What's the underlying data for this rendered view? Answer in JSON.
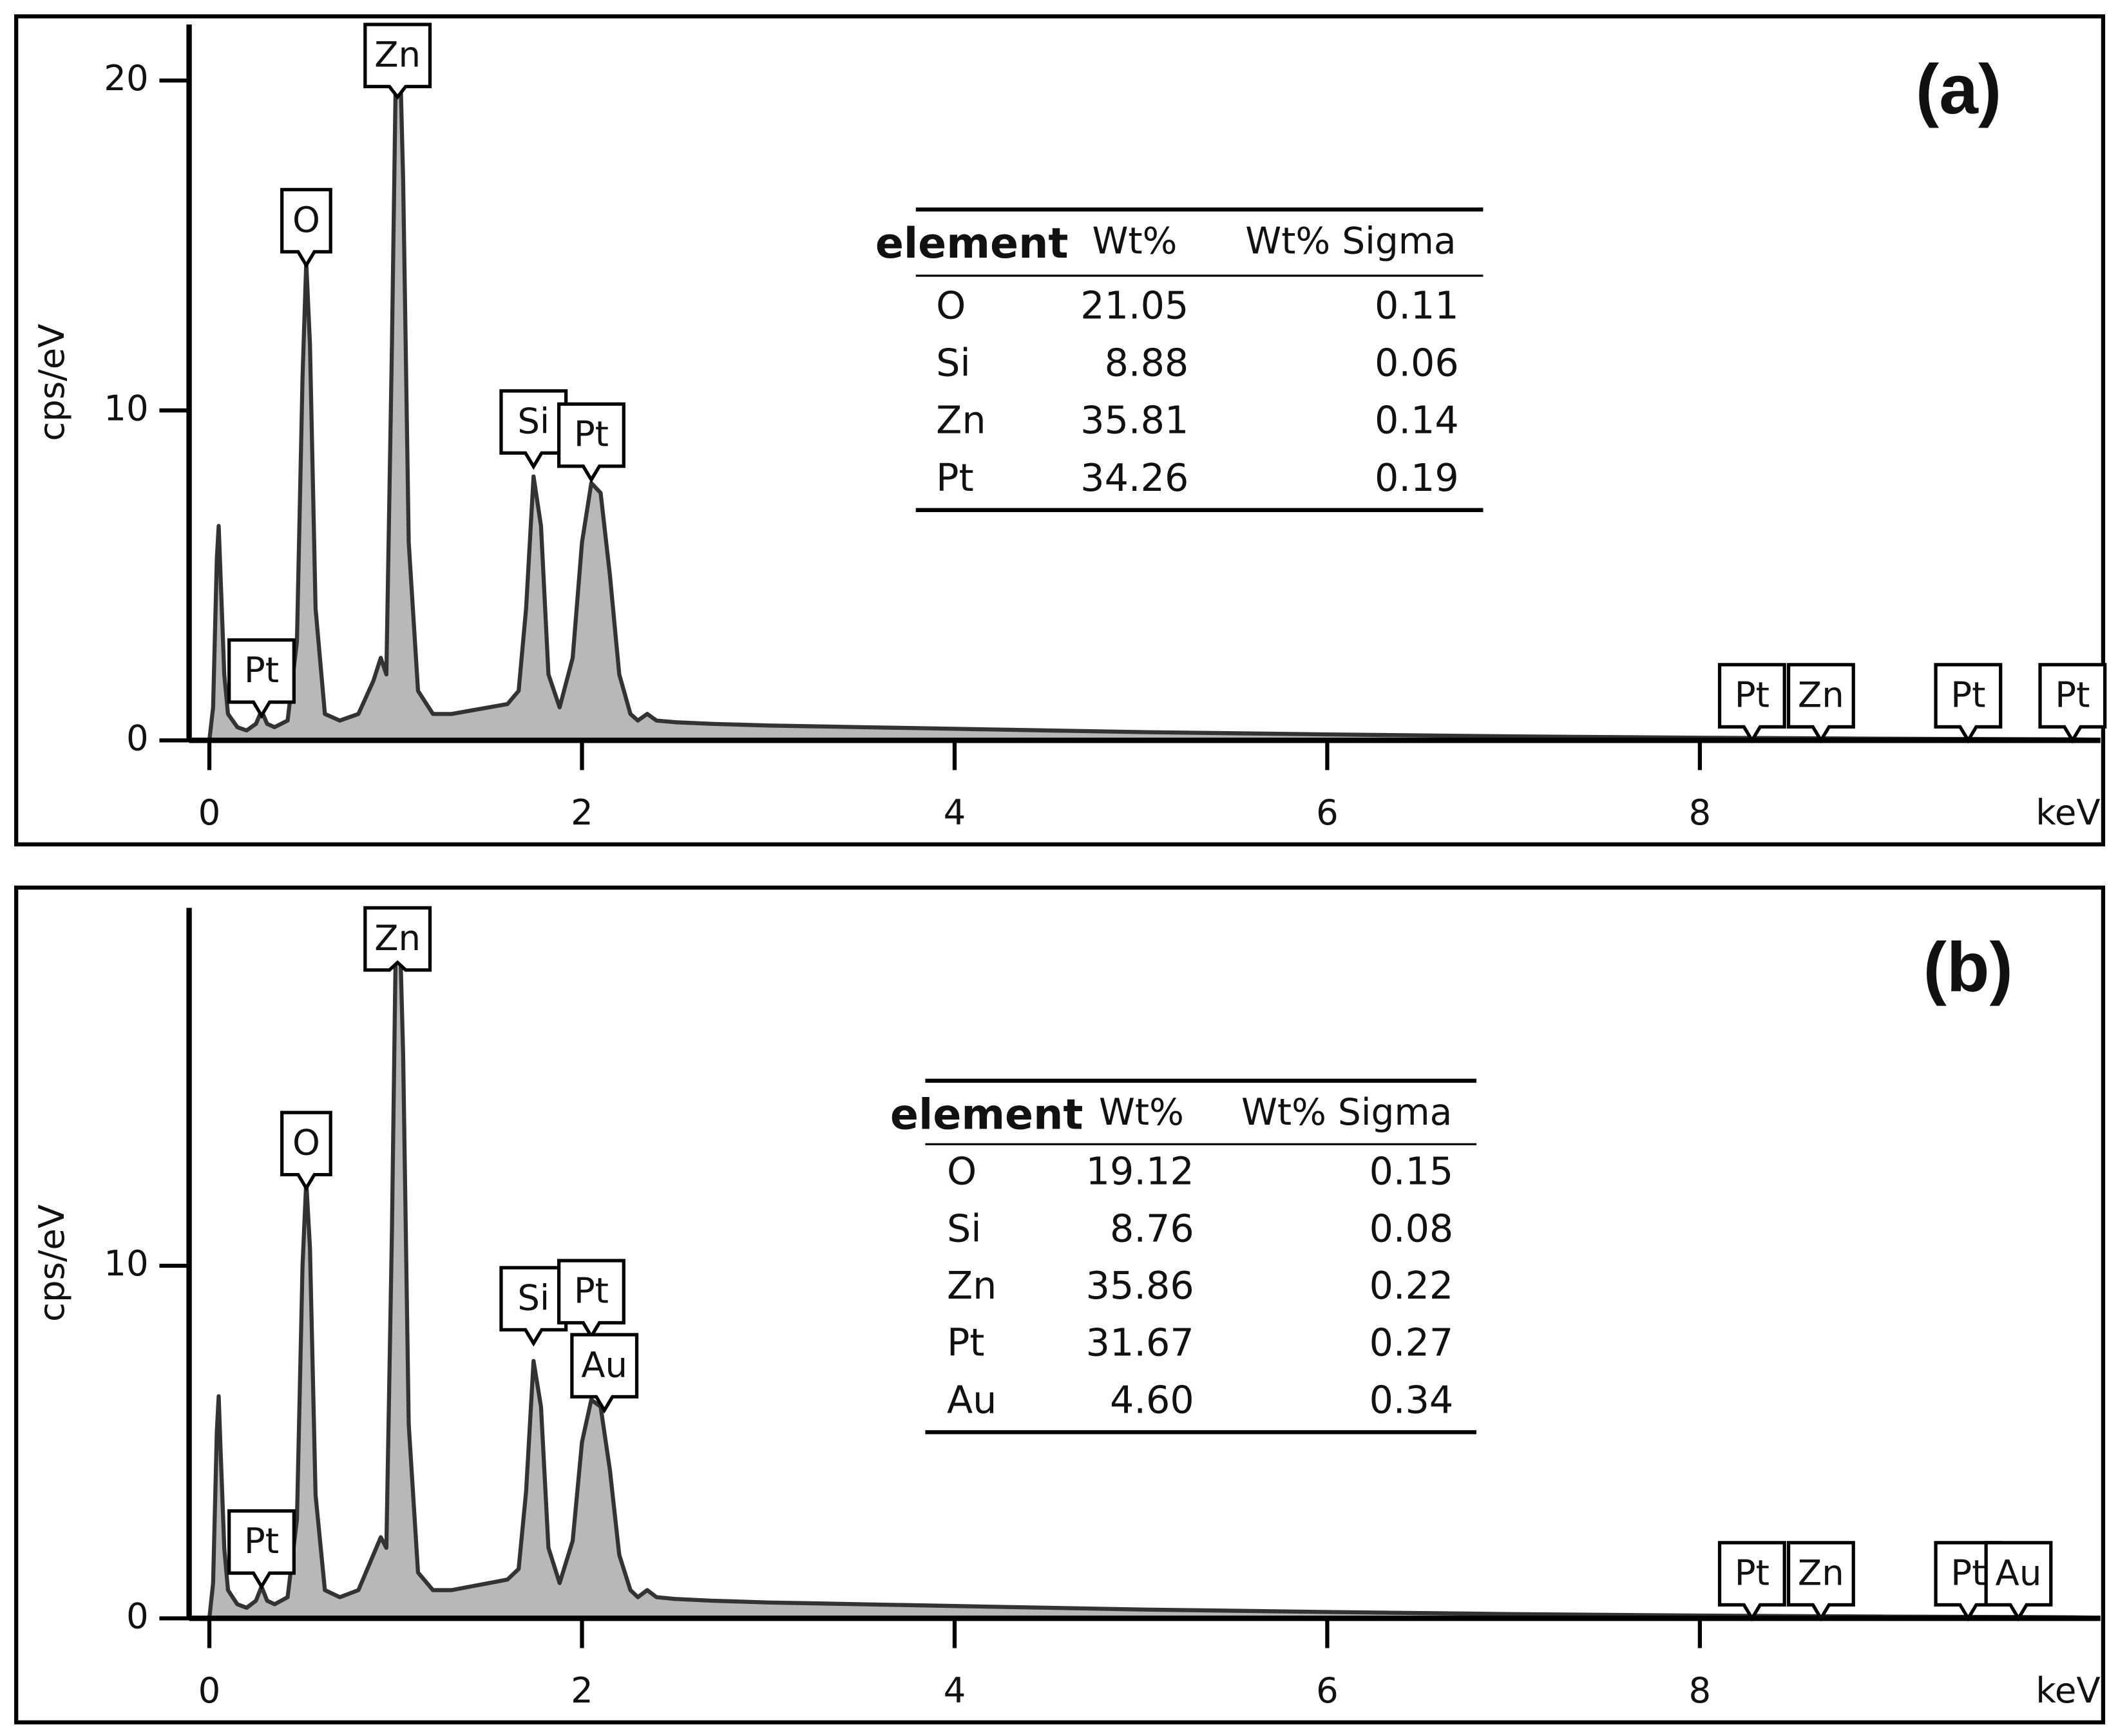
{
  "chart_data": [
    {
      "type": "area",
      "title": "(a)",
      "x_label": "keV",
      "y_label": "cps/eV",
      "color": "#b8b8b8",
      "line_color": "#333333",
      "x": [
        0,
        0.02,
        0.04,
        0.05,
        0.06,
        0.08,
        0.1,
        0.15,
        0.2,
        0.25,
        0.28,
        0.31,
        0.35,
        0.42,
        0.47,
        0.5,
        0.52,
        0.54,
        0.57,
        0.62,
        0.7,
        0.8,
        0.88,
        0.92,
        0.95,
        0.98,
        1.0,
        1.02,
        1.04,
        1.07,
        1.12,
        1.2,
        1.3,
        1.4,
        1.5,
        1.6,
        1.66,
        1.7,
        1.74,
        1.78,
        1.82,
        1.88,
        1.95,
        2.0,
        2.05,
        2.1,
        2.15,
        2.2,
        2.26,
        2.3,
        2.35,
        2.4,
        2.5,
        2.7,
        3,
        3.5,
        4,
        5,
        6,
        7,
        8,
        9,
        10,
        10.1
      ],
      "values": [
        0,
        1,
        5.5,
        6.5,
        5,
        2,
        0.8,
        0.4,
        0.3,
        0.5,
        0.9,
        0.5,
        0.4,
        0.6,
        3,
        11,
        14.5,
        12,
        4,
        0.8,
        0.6,
        0.8,
        1.8,
        2.5,
        2,
        12,
        20,
        21.5,
        17,
        6,
        1.5,
        0.8,
        0.8,
        0.9,
        1.0,
        1.1,
        1.5,
        4,
        8,
        6.5,
        2,
        1,
        2.5,
        6,
        7.8,
        7.5,
        5,
        2,
        0.8,
        0.6,
        0.8,
        0.6,
        0.55,
        0.5,
        0.45,
        0.4,
        0.35,
        0.25,
        0.18,
        0.12,
        0.08,
        0.05,
        0.03,
        0.02
      ],
      "xlim": [
        0,
        10.15
      ],
      "ylim": [
        0,
        21.7
      ],
      "xticks": [
        0,
        2,
        4,
        6,
        8
      ],
      "yticks": [
        0,
        10,
        20
      ],
      "peak_labels": [
        {
          "text": "Pt",
          "x": 0.28,
          "y": 0.75
        },
        {
          "text": "O",
          "x": 0.52,
          "y": 14.4
        },
        {
          "text": "Zn",
          "x": 1.01,
          "y": 19.5
        },
        {
          "text": "Si",
          "x": 1.74,
          "y": 8.3
        },
        {
          "text": "Pt",
          "x": 2.05,
          "y": 7.9
        },
        {
          "text": "Pt",
          "x": 8.28,
          "y": 0
        },
        {
          "text": "Zn",
          "x": 8.65,
          "y": 0
        },
        {
          "text": "Pt",
          "x": 9.44,
          "y": 0
        },
        {
          "text": "Pt",
          "x": 10.0,
          "y": 0
        }
      ],
      "table": {
        "columns": [
          "element",
          "Wt%",
          "Wt% Sigma"
        ],
        "rows": [
          [
            "O",
            "21.05",
            "0.11"
          ],
          [
            "Si",
            "8.88",
            "0.06"
          ],
          [
            "Zn",
            "35.81",
            "0.14"
          ],
          [
            "Pt",
            "34.26",
            "0.19"
          ]
        ]
      }
    },
    {
      "type": "area",
      "title": "(b)",
      "x_label": "keV",
      "y_label": "cps/eV",
      "color": "#b8b8b8",
      "line_color": "#333333",
      "x": [
        0,
        0.02,
        0.04,
        0.05,
        0.06,
        0.08,
        0.1,
        0.15,
        0.2,
        0.25,
        0.28,
        0.31,
        0.35,
        0.42,
        0.47,
        0.5,
        0.52,
        0.54,
        0.57,
        0.62,
        0.7,
        0.8,
        0.88,
        0.92,
        0.95,
        0.98,
        1.0,
        1.02,
        1.04,
        1.07,
        1.12,
        1.2,
        1.3,
        1.4,
        1.5,
        1.6,
        1.66,
        1.7,
        1.74,
        1.78,
        1.82,
        1.88,
        1.95,
        2.0,
        2.05,
        2.1,
        2.15,
        2.2,
        2.26,
        2.3,
        2.35,
        2.4,
        2.5,
        2.7,
        3,
        3.5,
        4,
        5,
        6,
        7,
        8,
        9,
        10,
        10.1
      ],
      "values": [
        0,
        1,
        5.3,
        6.3,
        4.8,
        2,
        0.8,
        0.4,
        0.3,
        0.5,
        0.9,
        0.5,
        0.4,
        0.6,
        2.8,
        10,
        12.4,
        10.5,
        3.5,
        0.8,
        0.6,
        0.8,
        1.8,
        2.3,
        2,
        11,
        19,
        20,
        16,
        5.5,
        1.3,
        0.8,
        0.8,
        0.9,
        1.0,
        1.1,
        1.4,
        3.6,
        7.3,
        6,
        2,
        1,
        2.2,
        5,
        6.2,
        6.0,
        4.2,
        1.8,
        0.8,
        0.6,
        0.8,
        0.6,
        0.55,
        0.5,
        0.45,
        0.4,
        0.35,
        0.25,
        0.18,
        0.12,
        0.08,
        0.05,
        0.03,
        0.02
      ],
      "xlim": [
        0,
        10.15
      ],
      "ylim": [
        0,
        20.15
      ],
      "xticks": [
        0,
        2,
        4,
        6,
        8
      ],
      "yticks": [
        0,
        10
      ],
      "peak_labels": [
        {
          "text": "Pt",
          "x": 0.28,
          "y": 0.9
        },
        {
          "text": "O",
          "x": 0.52,
          "y": 12.2
        },
        {
          "text": "Zn",
          "x": 1.01,
          "y": 18.6
        },
        {
          "text": "Si",
          "x": 1.74,
          "y": 7.8
        },
        {
          "text": "Pt",
          "x": 2.05,
          "y": 8.0
        },
        {
          "text": "Au",
          "x": 2.12,
          "y": 5.9
        },
        {
          "text": "Pt",
          "x": 8.28,
          "y": 0
        },
        {
          "text": "Zn",
          "x": 8.65,
          "y": 0
        },
        {
          "text": "Pt",
          "x": 9.44,
          "y": 0
        },
        {
          "text": "Au",
          "x": 9.71,
          "y": 0
        }
      ],
      "table": {
        "columns": [
          "element",
          "Wt%",
          "Wt% Sigma"
        ],
        "rows": [
          [
            "O",
            "19.12",
            "0.15"
          ],
          [
            "Si",
            "8.76",
            "0.08"
          ],
          [
            "Zn",
            "35.86",
            "0.22"
          ],
          [
            "Pt",
            "31.67",
            "0.27"
          ],
          [
            "Au",
            "4.60",
            "0.34"
          ]
        ]
      }
    }
  ]
}
